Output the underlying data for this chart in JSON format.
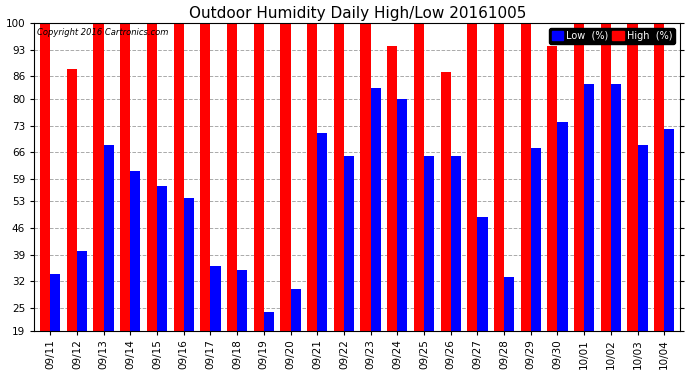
{
  "title": "Outdoor Humidity Daily High/Low 20161005",
  "copyright": "Copyright 2016 Cartronics.com",
  "dates": [
    "09/11",
    "09/12",
    "09/13",
    "09/14",
    "09/15",
    "09/16",
    "09/17",
    "09/18",
    "09/19",
    "09/20",
    "09/21",
    "09/22",
    "09/23",
    "09/24",
    "09/25",
    "09/26",
    "09/27",
    "09/28",
    "09/29",
    "09/30",
    "10/01",
    "10/02",
    "10/03",
    "10/04"
  ],
  "high": [
    100,
    88,
    100,
    100,
    100,
    100,
    100,
    100,
    100,
    100,
    100,
    100,
    100,
    94,
    100,
    87,
    100,
    100,
    100,
    94,
    100,
    100,
    100,
    100
  ],
  "low": [
    34,
    40,
    68,
    61,
    57,
    54,
    36,
    35,
    24,
    30,
    71,
    65,
    83,
    80,
    65,
    65,
    49,
    33,
    67,
    74,
    84,
    84,
    68,
    72
  ],
  "high_color": "#ff0000",
  "low_color": "#0000ff",
  "bg_color": "#ffffff",
  "grid_color": "#aaaaaa",
  "ylim_min": 19,
  "ylim_max": 100,
  "yticks": [
    19,
    25,
    32,
    39,
    46,
    53,
    59,
    66,
    73,
    80,
    86,
    93,
    100
  ],
  "title_fontsize": 11,
  "tick_fontsize": 7.5,
  "legend_low_label": "Low  (%)",
  "legend_high_label": "High  (%)"
}
